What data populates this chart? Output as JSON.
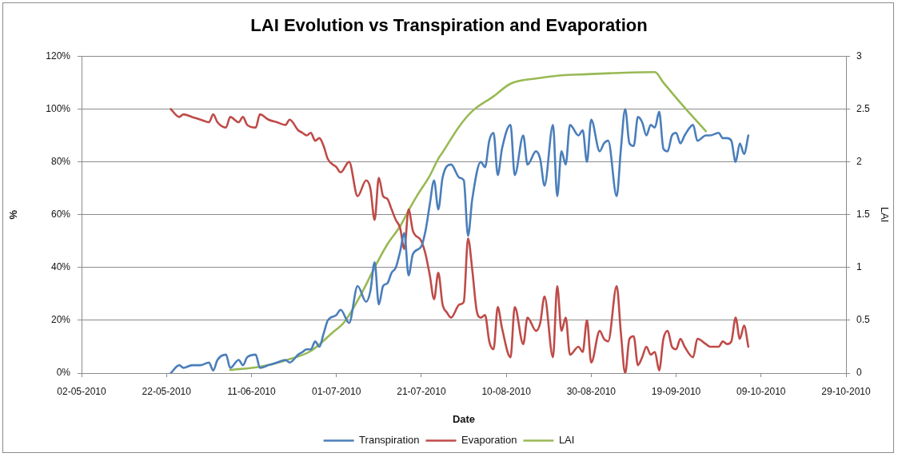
{
  "chart_data": {
    "type": "line",
    "title": "LAI Evolution vs Transpiration and Evaporation",
    "xlabel": "Date",
    "ylabel": "%",
    "y2label": "LAI",
    "xlim": [
      "2010-05-02",
      "2010-10-29"
    ],
    "xticks": [
      {
        "value": "2010-05-02",
        "label": "02-05-2010"
      },
      {
        "value": "2010-05-22",
        "label": "22-05-2010"
      },
      {
        "value": "2010-06-11",
        "label": "11-06-2010"
      },
      {
        "value": "2010-07-01",
        "label": "01-07-2010"
      },
      {
        "value": "2010-07-21",
        "label": "21-07-2010"
      },
      {
        "value": "2010-08-10",
        "label": "10-08-2010"
      },
      {
        "value": "2010-08-30",
        "label": "30-08-2010"
      },
      {
        "value": "2010-09-19",
        "label": "19-09-2010"
      },
      {
        "value": "2010-10-09",
        "label": "09-10-2010"
      },
      {
        "value": "2010-10-29",
        "label": "29-10-2010"
      }
    ],
    "ylim": [
      0,
      120
    ],
    "yticks": [
      {
        "value": 0,
        "label": "0%"
      },
      {
        "value": 20,
        "label": "20%"
      },
      {
        "value": 40,
        "label": "40%"
      },
      {
        "value": 60,
        "label": "60%"
      },
      {
        "value": 80,
        "label": "80%"
      },
      {
        "value": 100,
        "label": "100%"
      },
      {
        "value": 120,
        "label": "120%"
      }
    ],
    "y2lim": [
      0,
      3
    ],
    "y2ticks": [
      0,
      0.5,
      1,
      1.5,
      2,
      2.5,
      3
    ],
    "grid": "y",
    "legend": "bottom",
    "marker": "none",
    "line_style": "solid",
    "series": [
      {
        "name": "Transpiration",
        "color": "#4a7ebb",
        "x": [
          "2010-05-23",
          "2010-05-25",
          "2010-05-26",
          "2010-05-28",
          "2010-05-30",
          "2010-06-01",
          "2010-06-02",
          "2010-06-03",
          "2010-06-05",
          "2010-06-06",
          "2010-06-08",
          "2010-06-09",
          "2010-06-10",
          "2010-06-12",
          "2010-06-13",
          "2010-06-15",
          "2010-06-17",
          "2010-06-19",
          "2010-06-20",
          "2010-06-22",
          "2010-06-23",
          "2010-06-24",
          "2010-06-25",
          "2010-06-26",
          "2010-06-27",
          "2010-06-28",
          "2010-06-29",
          "2010-07-01",
          "2010-07-02",
          "2010-07-04",
          "2010-07-06",
          "2010-07-08",
          "2010-07-09",
          "2010-07-10",
          "2010-07-11",
          "2010-07-12",
          "2010-07-13",
          "2010-07-14",
          "2010-07-15",
          "2010-07-16",
          "2010-07-17",
          "2010-07-18",
          "2010-07-19",
          "2010-07-21",
          "2010-07-22",
          "2010-07-23",
          "2010-07-24",
          "2010-07-25",
          "2010-07-26",
          "2010-07-28",
          "2010-07-30",
          "2010-07-31",
          "2010-08-01",
          "2010-08-02",
          "2010-08-04",
          "2010-08-05",
          "2010-08-06",
          "2010-08-07",
          "2010-08-08",
          "2010-08-09",
          "2010-08-11",
          "2010-08-12",
          "2010-08-14",
          "2010-08-15",
          "2010-08-17",
          "2010-08-18",
          "2010-08-19",
          "2010-08-21",
          "2010-08-22",
          "2010-08-23",
          "2010-08-24",
          "2010-08-25",
          "2010-08-27",
          "2010-08-28",
          "2010-08-29",
          "2010-08-30",
          "2010-09-01",
          "2010-09-02",
          "2010-09-03",
          "2010-09-05",
          "2010-09-06",
          "2010-09-07",
          "2010-09-08",
          "2010-09-09",
          "2010-09-10",
          "2010-09-11",
          "2010-09-12",
          "2010-09-13",
          "2010-09-14",
          "2010-09-15",
          "2010-09-16",
          "2010-09-17",
          "2010-09-18",
          "2010-09-19",
          "2010-09-20",
          "2010-09-21",
          "2010-09-23",
          "2010-09-24",
          "2010-09-26",
          "2010-09-27",
          "2010-09-29",
          "2010-09-30",
          "2010-10-01",
          "2010-10-02",
          "2010-10-03",
          "2010-10-04",
          "2010-10-05",
          "2010-10-06"
        ],
        "values": [
          0,
          3,
          2,
          3,
          3,
          4,
          1,
          5,
          7,
          2,
          5,
          3,
          6,
          7,
          2,
          3,
          4,
          5,
          4,
          7,
          8,
          9,
          9,
          12,
          10,
          15,
          20,
          22,
          24,
          19,
          33,
          27,
          31,
          42,
          26,
          33,
          34,
          38,
          40,
          46,
          53,
          37,
          45,
          48,
          54,
          64,
          73,
          62,
          74,
          79,
          74,
          73,
          52,
          66,
          80,
          78,
          88,
          91,
          75,
          85,
          94,
          75,
          90,
          79,
          84,
          81,
          71,
          94,
          67,
          84,
          79,
          94,
          90,
          92,
          80,
          96,
          84,
          87,
          88,
          67,
          85,
          100,
          87,
          86,
          97,
          95,
          90,
          94,
          93,
          99,
          85,
          84,
          90,
          91,
          87,
          90,
          94,
          88,
          90,
          90,
          91,
          89,
          89,
          88,
          80,
          87,
          83,
          90
        ]
      },
      {
        "name": "Evaporation",
        "color": "#be4b48",
        "x": [
          "2010-05-23",
          "2010-05-25",
          "2010-05-26",
          "2010-05-28",
          "2010-05-30",
          "2010-06-01",
          "2010-06-02",
          "2010-06-03",
          "2010-06-05",
          "2010-06-06",
          "2010-06-08",
          "2010-06-09",
          "2010-06-10",
          "2010-06-12",
          "2010-06-13",
          "2010-06-15",
          "2010-06-17",
          "2010-06-19",
          "2010-06-20",
          "2010-06-22",
          "2010-06-23",
          "2010-06-24",
          "2010-06-25",
          "2010-06-26",
          "2010-06-27",
          "2010-06-28",
          "2010-06-29",
          "2010-07-01",
          "2010-07-02",
          "2010-07-04",
          "2010-07-06",
          "2010-07-08",
          "2010-07-09",
          "2010-07-10",
          "2010-07-11",
          "2010-07-12",
          "2010-07-13",
          "2010-07-14",
          "2010-07-15",
          "2010-07-16",
          "2010-07-17",
          "2010-07-18",
          "2010-07-19",
          "2010-07-21",
          "2010-07-22",
          "2010-07-23",
          "2010-07-24",
          "2010-07-25",
          "2010-07-26",
          "2010-07-27",
          "2010-07-28",
          "2010-07-30",
          "2010-07-31",
          "2010-08-01",
          "2010-08-02",
          "2010-08-03",
          "2010-08-04",
          "2010-08-05",
          "2010-08-06",
          "2010-08-07",
          "2010-08-08",
          "2010-08-09",
          "2010-08-11",
          "2010-08-12",
          "2010-08-14",
          "2010-08-15",
          "2010-08-17",
          "2010-08-18",
          "2010-08-19",
          "2010-08-21",
          "2010-08-22",
          "2010-08-23",
          "2010-08-24",
          "2010-08-25",
          "2010-08-27",
          "2010-08-28",
          "2010-08-29",
          "2010-08-30",
          "2010-09-01",
          "2010-09-02",
          "2010-09-03",
          "2010-09-05",
          "2010-09-06",
          "2010-09-07",
          "2010-09-08",
          "2010-09-09",
          "2010-09-10",
          "2010-09-11",
          "2010-09-12",
          "2010-09-13",
          "2010-09-14",
          "2010-09-15",
          "2010-09-16",
          "2010-09-17",
          "2010-09-18",
          "2010-09-19",
          "2010-09-20",
          "2010-09-21",
          "2010-09-23",
          "2010-09-24",
          "2010-09-26",
          "2010-09-27",
          "2010-09-29",
          "2010-09-30",
          "2010-10-01",
          "2010-10-02",
          "2010-10-03",
          "2010-10-04",
          "2010-10-05",
          "2010-10-06"
        ],
        "values": [
          100,
          97,
          98,
          97,
          96,
          95,
          98,
          95,
          93,
          97,
          95,
          97,
          94,
          93,
          98,
          96,
          95,
          94,
          96,
          92,
          91,
          90,
          91,
          88,
          89,
          86,
          81,
          78,
          76,
          80,
          67,
          73,
          70,
          58,
          74,
          67,
          66,
          62,
          58,
          55,
          47,
          62,
          54,
          50,
          45,
          37,
          28,
          38,
          26,
          23,
          21,
          26,
          27,
          51,
          39,
          24,
          21,
          22,
          12,
          9,
          25,
          17,
          6,
          25,
          11,
          21,
          16,
          19,
          29,
          6,
          33,
          16,
          21,
          7,
          10,
          8,
          20,
          4,
          16,
          13,
          12,
          33,
          15,
          0,
          13,
          14,
          3,
          6,
          10,
          7,
          8,
          1,
          13,
          16,
          10,
          9,
          13,
          10,
          6,
          13,
          11,
          10,
          10,
          12,
          11,
          12,
          21,
          13,
          18,
          10
        ]
      },
      {
        "name": "LAI",
        "color": "#98b954",
        "axis": "y2",
        "x": [
          "2010-06-06",
          "2010-06-13",
          "2010-06-19",
          "2010-06-25",
          "2010-06-30",
          "2010-07-03",
          "2010-07-07",
          "2010-07-10",
          "2010-07-13",
          "2010-07-16",
          "2010-07-18",
          "2010-07-20",
          "2010-07-23",
          "2010-07-25",
          "2010-07-26",
          "2010-07-30",
          "2010-08-02",
          "2010-08-07",
          "2010-08-11",
          "2010-08-17",
          "2010-08-23",
          "2010-08-29",
          "2010-09-04",
          "2010-09-14",
          "2010-09-16",
          "2010-09-20",
          "2010-09-26"
        ],
        "values": [
          0.03,
          0.06,
          0.12,
          0.21,
          0.38,
          0.49,
          0.76,
          1.0,
          1.22,
          1.39,
          1.54,
          1.68,
          1.87,
          2.03,
          2.09,
          2.34,
          2.48,
          2.62,
          2.74,
          2.79,
          2.82,
          2.83,
          2.84,
          2.85,
          2.75,
          2.56,
          2.29
        ]
      }
    ]
  }
}
